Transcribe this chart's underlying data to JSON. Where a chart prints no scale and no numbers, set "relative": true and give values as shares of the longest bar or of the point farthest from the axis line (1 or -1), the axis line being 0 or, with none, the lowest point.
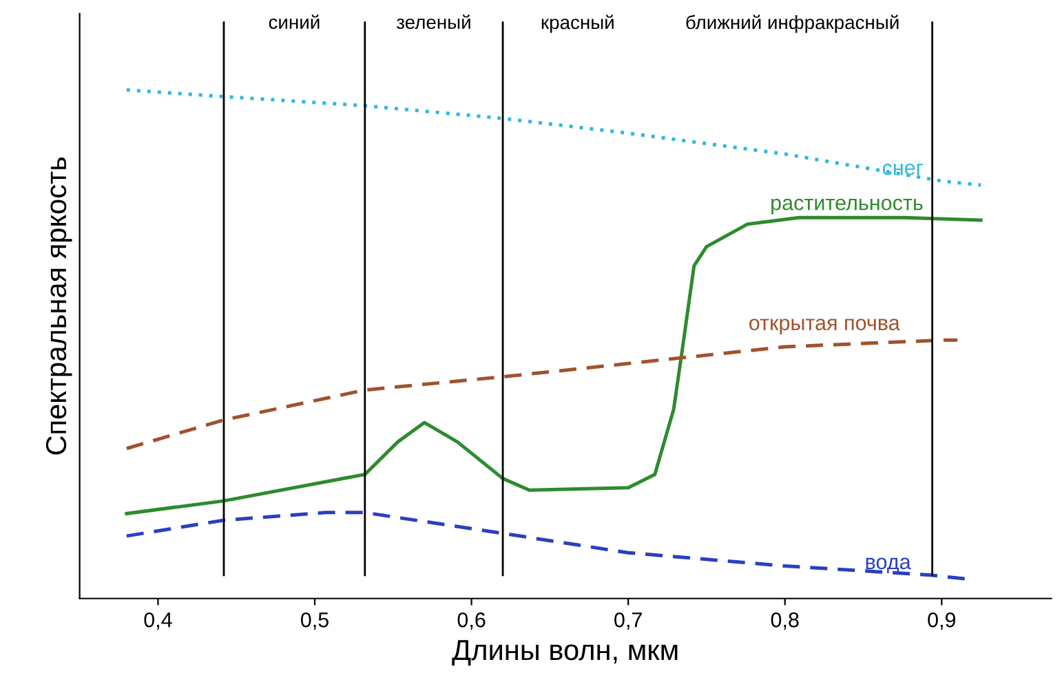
{
  "chart_data": {
    "type": "line",
    "relative": true,
    "xlabel": "Длины волн, мкм",
    "ylabel": "Спектральная яркость",
    "xlim": [
      0.35,
      0.97
    ],
    "xticks": [
      {
        "value": 0.4,
        "label": "0,4"
      },
      {
        "value": 0.5,
        "label": "0,5"
      },
      {
        "value": 0.6,
        "label": "0,6"
      },
      {
        "value": 0.7,
        "label": "0,7"
      },
      {
        "value": 0.8,
        "label": "0,8"
      },
      {
        "value": 0.9,
        "label": "0,9"
      }
    ],
    "grid": false,
    "legend": false,
    "marker": "none",
    "series": [
      {
        "name": "снег",
        "color": "#2eb8dc",
        "line_style": "dotted",
        "x": [
          0.38,
          0.442,
          0.532,
          0.62,
          0.7,
          0.8,
          0.9,
          0.925
        ],
        "values": [
          1.0,
          0.987,
          0.969,
          0.944,
          0.915,
          0.874,
          0.821,
          0.813
        ]
      },
      {
        "name": "растительность",
        "color": "#2e8b2e",
        "line_style": "solid",
        "x": [
          0.38,
          0.442,
          0.532,
          0.553,
          0.57,
          0.591,
          0.62,
          0.637,
          0.7,
          0.717,
          0.729,
          0.735,
          0.742,
          0.75,
          0.776,
          0.809,
          0.876,
          0.925
        ],
        "values": [
          0.167,
          0.192,
          0.244,
          0.308,
          0.346,
          0.308,
          0.236,
          0.213,
          0.218,
          0.244,
          0.372,
          0.5,
          0.654,
          0.692,
          0.736,
          0.749,
          0.749,
          0.744
        ]
      },
      {
        "name": "открытая почва",
        "color": "#a0522d",
        "line_style": "dashed",
        "x": [
          0.38,
          0.442,
          0.532,
          0.62,
          0.7,
          0.8,
          0.9,
          0.91
        ],
        "values": [
          0.295,
          0.351,
          0.41,
          0.436,
          0.462,
          0.495,
          0.508,
          0.508
        ]
      },
      {
        "name": "вода",
        "color": "#2a3fc0",
        "line_style": "dashed",
        "x": [
          0.38,
          0.442,
          0.507,
          0.532,
          0.62,
          0.7,
          0.8,
          0.893,
          0.917
        ],
        "values": [
          0.123,
          0.154,
          0.169,
          0.169,
          0.128,
          0.09,
          0.064,
          0.046,
          0.038
        ]
      }
    ],
    "ref_lines": [
      {
        "axis": "x",
        "value": 0.442,
        "color": "#000000"
      },
      {
        "axis": "x",
        "value": 0.532,
        "color": "#000000"
      },
      {
        "axis": "x",
        "value": 0.62,
        "color": "#000000"
      },
      {
        "axis": "x",
        "value": 0.894,
        "color": "#000000"
      }
    ],
    "annotations": [
      "синий",
      "зеленый",
      "красный",
      "ближний инфракрасный"
    ]
  }
}
